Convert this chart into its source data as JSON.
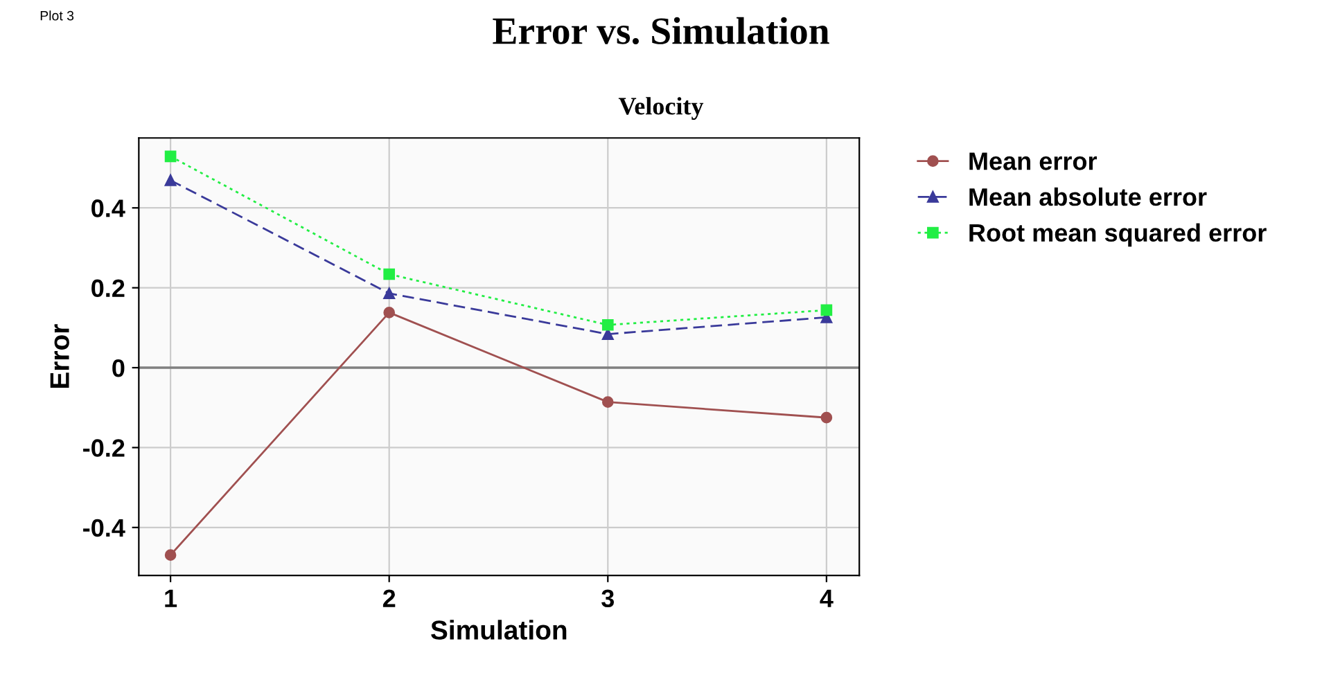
{
  "chart_data": {
    "type": "line",
    "title": "Error vs. Simulation",
    "subtitle": "Velocity",
    "xlabel": "Simulation",
    "ylabel": "Error",
    "annotations": [
      "Plot 3"
    ],
    "x": [
      1,
      2,
      3,
      4
    ],
    "series": [
      {
        "name": "Mean error",
        "color": "#a05050",
        "marker": "circle",
        "line_style": "solid",
        "values": [
          -0.469,
          0.138,
          -0.086,
          -0.125
        ]
      },
      {
        "name": "Mean absolute error",
        "color": "#3a3a9a",
        "marker": "triangle",
        "line_style": "dashed",
        "values": [
          0.469,
          0.186,
          0.084,
          0.126
        ]
      },
      {
        "name": "Root mean squared error",
        "color": "#22ee44",
        "marker": "square",
        "line_style": "dotted",
        "values": [
          0.529,
          0.234,
          0.107,
          0.144
        ]
      }
    ],
    "xlim": [
      0.855,
      4.15
    ],
    "xticks": [
      1,
      2,
      3,
      4
    ],
    "ylim": [
      -0.52,
      0.575
    ],
    "yticks": [
      -0.4,
      -0.2,
      0,
      0.2,
      0.4
    ],
    "ref_lines": [
      {
        "axis": "y",
        "value": 0,
        "color": "#808080",
        "line_style": "solid"
      }
    ],
    "grid": true,
    "legend": "right"
  }
}
